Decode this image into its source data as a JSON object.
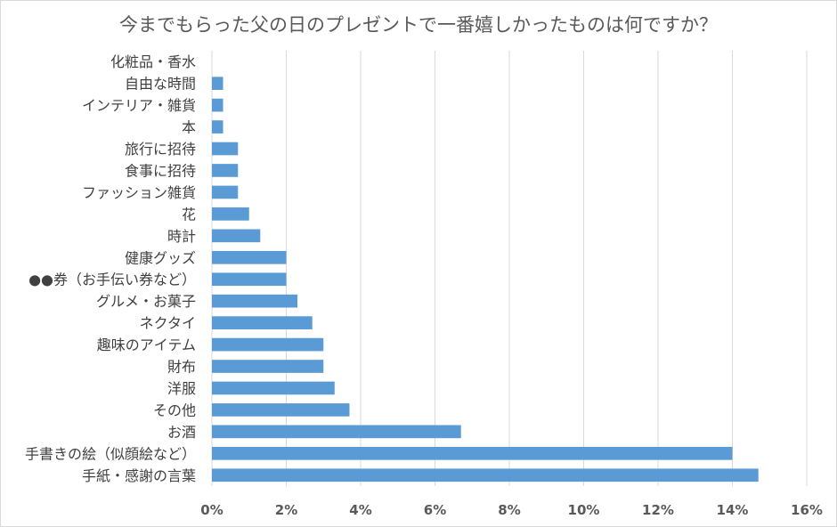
{
  "chart_data": {
    "type": "bar",
    "orientation": "horizontal",
    "title": "今までもらった父の日のプレゼントで一番嬉しかったものは何ですか？",
    "categories": [
      "化粧品・香水",
      "自由な時間",
      "インテリア・雑貨",
      "本",
      "旅行に招待",
      "食事に招待",
      "ファッション雑貨",
      "花",
      "時計",
      "健康グッズ",
      "●●券（お手伝い券など）",
      "グルメ・お菓子",
      "ネクタイ",
      "趣味のアイテム",
      "財布",
      "洋服",
      "その他",
      "お酒",
      "手書きの絵（似顔絵など）",
      "手紙・感謝の言葉"
    ],
    "values": [
      0,
      0.3,
      0.3,
      0.3,
      0.7,
      0.7,
      0.7,
      1.0,
      1.3,
      2.0,
      2.0,
      2.3,
      2.7,
      3.0,
      3.0,
      3.3,
      3.7,
      6.7,
      14.0,
      14.7
    ],
    "unit": "%",
    "xlim": [
      0,
      16
    ],
    "xticks": [
      0,
      2,
      4,
      6,
      8,
      10,
      12,
      14,
      16
    ],
    "xtick_labels": [
      "0%",
      "2%",
      "4%",
      "6%",
      "8%",
      "10%",
      "12%",
      "14%",
      "16%"
    ],
    "xlabel": "",
    "ylabel": "",
    "grid": true,
    "bar_color": "#5b9bd5",
    "grid_color": "#d9d9d9"
  }
}
